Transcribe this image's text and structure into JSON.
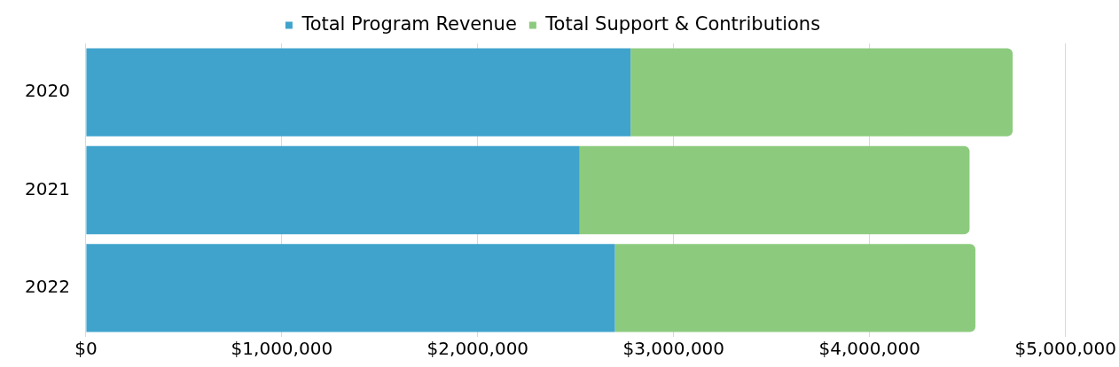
{
  "chart_data": {
    "type": "bar",
    "orientation": "horizontal",
    "stacked": true,
    "categories": [
      "2020",
      "2021",
      "2022"
    ],
    "series": [
      {
        "name": "Total Program Revenue",
        "color": "#3fa3cc",
        "values": [
          2780000,
          2520000,
          2700000
        ]
      },
      {
        "name": "Total Support & Contributions",
        "color": "#8ccb7e",
        "values": [
          1950000,
          1990000,
          1840000
        ]
      }
    ],
    "xlim": [
      0,
      5000000
    ],
    "xticks": [
      {
        "value": 0,
        "label": "$0"
      },
      {
        "value": 1000000,
        "label": "$1,000,000"
      },
      {
        "value": 2000000,
        "label": "$2,000,000"
      },
      {
        "value": 3000000,
        "label": "$3,000,000"
      },
      {
        "value": 4000000,
        "label": "$4,000,000"
      },
      {
        "value": 5000000,
        "label": "$5,000,000"
      }
    ],
    "grid": "x",
    "legend": "top"
  }
}
